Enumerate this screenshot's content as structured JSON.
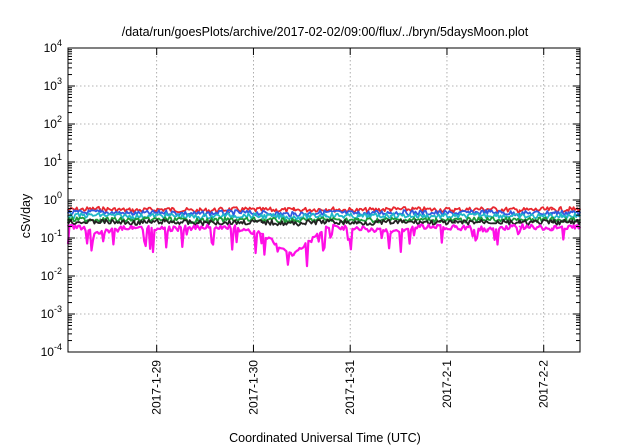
{
  "chart_data": {
    "type": "line",
    "title": "/data/run/goesPlots/archive/2017-02-02/09:00/flux/../bryn/5daysMoon.plot",
    "xlabel": "Coordinated Universal Time (UTC)",
    "ylabel": "cSv/day",
    "yscale": "log",
    "ylim": [
      0.0001,
      10000
    ],
    "xlim": [
      "2017-01-28T02:00",
      "2017-02-02T09:00"
    ],
    "grid": true,
    "legend": "none",
    "y_ticks": [
      {
        "base": "10",
        "exp": "-4",
        "value": 0.0001
      },
      {
        "base": "10",
        "exp": "-3",
        "value": 0.001
      },
      {
        "base": "10",
        "exp": "-2",
        "value": 0.01
      },
      {
        "base": "10",
        "exp": "-1",
        "value": 0.1
      },
      {
        "base": "10",
        "exp": "0",
        "value": 1
      },
      {
        "base": "10",
        "exp": "1",
        "value": 10
      },
      {
        "base": "10",
        "exp": "2",
        "value": 100
      },
      {
        "base": "10",
        "exp": "3",
        "value": 1000
      },
      {
        "base": "10",
        "exp": "4",
        "value": 10000
      }
    ],
    "x_ticks": [
      {
        "label": "2017-1-29",
        "value": "2017-01-29T00:00"
      },
      {
        "label": "2017-1-30",
        "value": "2017-01-30T00:00"
      },
      {
        "label": "2017-1-31",
        "value": "2017-01-31T00:00"
      },
      {
        "label": "2017-2-1",
        "value": "2017-02-01T00:00"
      },
      {
        "label": "2017-2-2",
        "value": "2017-02-02T00:00"
      }
    ],
    "x": [
      "2017-01-28T02:00",
      "2017-01-28T10:00",
      "2017-01-28T18:00",
      "2017-01-29T02:00",
      "2017-01-29T10:00",
      "2017-01-29T18:00",
      "2017-01-30T02:00",
      "2017-01-30T10:00",
      "2017-01-30T18:00",
      "2017-01-31T02:00",
      "2017-01-31T10:00",
      "2017-01-31T18:00",
      "2017-02-01T02:00",
      "2017-02-01T10:00",
      "2017-02-01T18:00",
      "2017-02-02T02:00",
      "2017-02-02T09:00"
    ],
    "series": [
      {
        "color": "#e8262e",
        "values": [
          0.55,
          0.58,
          0.53,
          0.57,
          0.52,
          0.56,
          0.55,
          0.54,
          0.58,
          0.53,
          0.57,
          0.56,
          0.55,
          0.58,
          0.54,
          0.56,
          0.57
        ]
      },
      {
        "color": "#2f5be0",
        "values": [
          0.46,
          0.48,
          0.44,
          0.47,
          0.43,
          0.47,
          0.45,
          0.42,
          0.48,
          0.44,
          0.47,
          0.46,
          0.45,
          0.48,
          0.44,
          0.46,
          0.47
        ]
      },
      {
        "color": "#1fb7c8",
        "values": [
          0.38,
          0.4,
          0.37,
          0.39,
          0.36,
          0.39,
          0.38,
          0.35,
          0.4,
          0.37,
          0.39,
          0.38,
          0.37,
          0.4,
          0.37,
          0.38,
          0.39
        ]
      },
      {
        "color": "#1e9a3a",
        "values": [
          0.3,
          0.31,
          0.29,
          0.31,
          0.28,
          0.3,
          0.3,
          0.28,
          0.31,
          0.29,
          0.3,
          0.3,
          0.29,
          0.31,
          0.29,
          0.3,
          0.3
        ]
      },
      {
        "color": "#222222",
        "values": [
          0.26,
          0.27,
          0.25,
          0.27,
          0.25,
          0.26,
          0.26,
          0.24,
          0.27,
          0.25,
          0.26,
          0.26,
          0.25,
          0.27,
          0.25,
          0.26,
          0.26
        ]
      },
      {
        "color": "#ff0fe6",
        "values": [
          0.21,
          0.14,
          0.2,
          0.17,
          0.19,
          0.2,
          0.13,
          0.035,
          0.2,
          0.18,
          0.15,
          0.2,
          0.19,
          0.17,
          0.2,
          0.18,
          0.19
        ]
      }
    ]
  }
}
